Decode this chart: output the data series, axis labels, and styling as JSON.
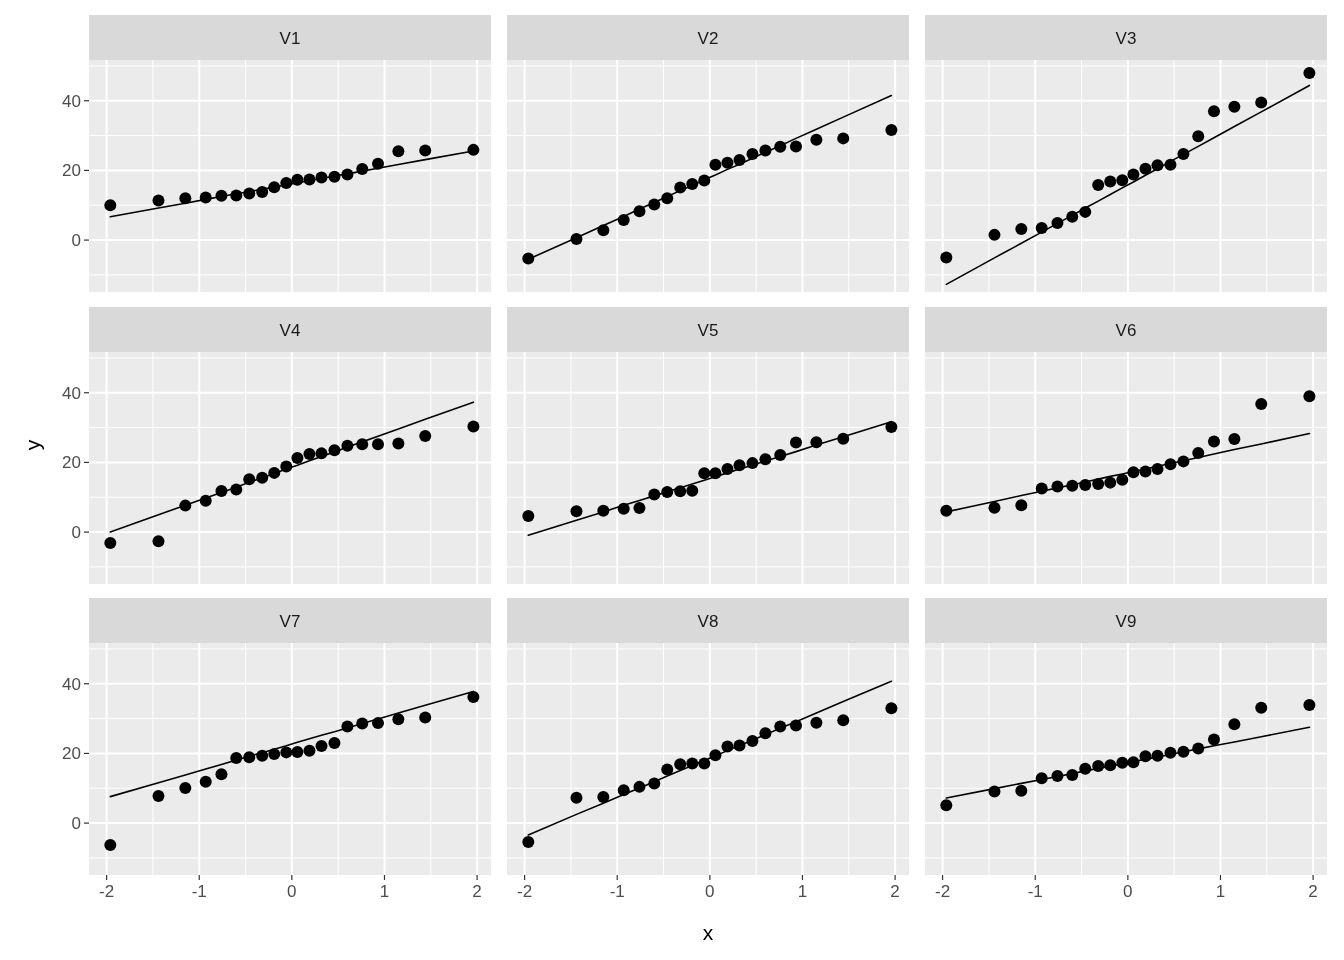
{
  "chart_data": [
    {
      "type": "scatter",
      "title": "V1",
      "x": [
        -1.96,
        -1.44,
        -1.15,
        -0.93,
        -0.76,
        -0.6,
        -0.46,
        -0.32,
        -0.19,
        -0.06,
        0.06,
        0.19,
        0.32,
        0.46,
        0.6,
        0.76,
        0.93,
        1.15,
        1.44,
        1.96
      ],
      "xlim": [
        -2.19,
        2.15
      ],
      "ylim": [
        -14.9,
        51.7
      ],
      "xticks": [
        -2,
        -1,
        0,
        1,
        2
      ],
      "yticks": [
        0,
        20,
        40
      ],
      "grid": true,
      "tick_labels": "y",
      "series": [
        {
          "type": "scatter",
          "color": "#000000",
          "values": [
            10,
            11.4,
            12,
            12.2,
            12.7,
            12.8,
            13.4,
            13.8,
            15.2,
            16.4,
            17.3,
            17.4,
            18,
            18.2,
            18.8,
            20.4,
            21.9,
            25.5,
            25.7,
            25.9
          ]
        },
        {
          "type": "line",
          "color": "#000000",
          "values": [
            6.7,
            9.2,
            10.6,
            11.7,
            12.5,
            13.3,
            13.9,
            14.6,
            15.2,
            15.9,
            16.4,
            17.1,
            17.7,
            18.4,
            19.0,
            19.8,
            20.6,
            21.7,
            23.1,
            25.6
          ]
        }
      ]
    },
    {
      "type": "scatter",
      "title": "V2",
      "x": [
        -1.96,
        -1.44,
        -1.15,
        -0.93,
        -0.76,
        -0.6,
        -0.46,
        -0.32,
        -0.19,
        -0.06,
        0.06,
        0.19,
        0.32,
        0.46,
        0.6,
        0.76,
        0.93,
        1.15,
        1.44,
        1.96
      ],
      "xlim": [
        -2.19,
        2.15
      ],
      "ylim": [
        -14.9,
        51.7
      ],
      "xticks": [
        -2,
        -1,
        0,
        1,
        2
      ],
      "yticks": [
        0,
        20,
        40
      ],
      "grid": true,
      "tick_labels": false,
      "series": [
        {
          "type": "scatter",
          "color": "#000000",
          "values": [
            -5.3,
            0.3,
            2.8,
            5.8,
            8.3,
            10.2,
            12,
            15.1,
            16.1,
            17.1,
            21.6,
            22.2,
            23,
            24.7,
            25.7,
            26.8,
            26.9,
            28.8,
            29.2,
            31.6
          ]
        },
        {
          "type": "line",
          "color": "#000000",
          "values": [
            -5.5,
            0.7,
            4.2,
            6.8,
            8.9,
            10.8,
            12.5,
            14.2,
            15.7,
            17.3,
            18.7,
            20.3,
            21.8,
            23.5,
            25.2,
            27.1,
            29.2,
            31.8,
            35.3,
            41.5
          ]
        }
      ]
    },
    {
      "type": "scatter",
      "title": "V3",
      "x": [
        -1.96,
        -1.44,
        -1.15,
        -0.93,
        -0.76,
        -0.6,
        -0.46,
        -0.32,
        -0.19,
        -0.06,
        0.06,
        0.19,
        0.32,
        0.46,
        0.6,
        0.76,
        0.93,
        1.15,
        1.44,
        1.96
      ],
      "xlim": [
        -2.19,
        2.15
      ],
      "ylim": [
        -14.9,
        51.7
      ],
      "xticks": [
        -2,
        -1,
        0,
        1,
        2
      ],
      "yticks": [
        0,
        20,
        40
      ],
      "grid": true,
      "tick_labels": false,
      "series": [
        {
          "type": "scatter",
          "color": "#000000",
          "values": [
            -5,
            1.5,
            3.2,
            3.5,
            4.9,
            6.7,
            8.1,
            15.8,
            16.8,
            17.2,
            18.8,
            20.5,
            21.5,
            21.6,
            24.7,
            29.8,
            37,
            38.3,
            39.5,
            48
          ]
        },
        {
          "type": "line",
          "color": "#000000",
          "values": [
            -12.7,
            -5.1,
            -0.9,
            2.3,
            4.8,
            7.1,
            9.2,
            11.2,
            13.1,
            15.0,
            16.7,
            18.6,
            20.5,
            22.6,
            24.6,
            26.9,
            29.4,
            32.6,
            36.8,
            44.4
          ]
        }
      ]
    },
    {
      "type": "scatter",
      "title": "V4",
      "ylabel": "y",
      "x": [
        -1.96,
        -1.44,
        -1.15,
        -0.93,
        -0.76,
        -0.6,
        -0.46,
        -0.32,
        -0.19,
        -0.06,
        0.06,
        0.19,
        0.32,
        0.46,
        0.6,
        0.76,
        0.93,
        1.15,
        1.44,
        1.96
      ],
      "xlim": [
        -2.19,
        2.15
      ],
      "ylim": [
        -14.9,
        51.7
      ],
      "xticks": [
        -2,
        -1,
        0,
        1,
        2
      ],
      "yticks": [
        0,
        20,
        40
      ],
      "grid": true,
      "tick_labels": "y",
      "series": [
        {
          "type": "scatter",
          "color": "#000000",
          "values": [
            -3.1,
            -2.6,
            7.6,
            9,
            11.8,
            12.2,
            15.2,
            15.6,
            17,
            18.8,
            21.3,
            22.4,
            22.6,
            23.5,
            24.8,
            25.2,
            25.2,
            25.4,
            27.6,
            30.3
          ]
        },
        {
          "type": "line",
          "color": "#000000",
          "values": [
            0,
            5.0,
            7.7,
            9.8,
            11.4,
            12.9,
            14.3,
            15.6,
            16.8,
            18.1,
            19.2,
            20.5,
            21.7,
            23.0,
            24.4,
            25.9,
            27.5,
            29.6,
            32.4,
            37.3
          ]
        }
      ]
    },
    {
      "type": "scatter",
      "title": "V5",
      "x": [
        -1.96,
        -1.44,
        -1.15,
        -0.93,
        -0.76,
        -0.6,
        -0.46,
        -0.32,
        -0.19,
        -0.06,
        0.06,
        0.19,
        0.32,
        0.46,
        0.6,
        0.76,
        0.93,
        1.15,
        1.44,
        1.96
      ],
      "xlim": [
        -2.19,
        2.15
      ],
      "ylim": [
        -14.9,
        51.7
      ],
      "xticks": [
        -2,
        -1,
        0,
        1,
        2
      ],
      "yticks": [
        0,
        20,
        40
      ],
      "grid": true,
      "tick_labels": false,
      "series": [
        {
          "type": "scatter",
          "color": "#000000",
          "values": [
            4.6,
            6,
            6.1,
            6.7,
            6.9,
            10.8,
            11.5,
            11.7,
            11.9,
            16.9,
            16.9,
            18.1,
            19.2,
            19.8,
            20.9,
            22.1,
            25.7,
            25.8,
            26.8,
            30.2
          ]
        },
        {
          "type": "line",
          "color": "#000000",
          "values": [
            -0.9,
            3.4,
            5.8,
            7.7,
            9.1,
            10.4,
            11.6,
            12.7,
            13.8,
            14.9,
            15.9,
            17.0,
            18.1,
            19.2,
            20.4,
            21.7,
            23.1,
            25.0,
            27.4,
            31.7
          ]
        }
      ]
    },
    {
      "type": "scatter",
      "title": "V6",
      "x": [
        -1.96,
        -1.44,
        -1.15,
        -0.93,
        -0.76,
        -0.6,
        -0.46,
        -0.32,
        -0.19,
        -0.06,
        0.06,
        0.19,
        0.32,
        0.46,
        0.6,
        0.76,
        0.93,
        1.15,
        1.44,
        1.96
      ],
      "xlim": [
        -2.19,
        2.15
      ],
      "ylim": [
        -14.9,
        51.7
      ],
      "xticks": [
        -2,
        -1,
        0,
        1,
        2
      ],
      "yticks": [
        0,
        20,
        40
      ],
      "grid": true,
      "tick_labels": false,
      "series": [
        {
          "type": "scatter",
          "color": "#000000",
          "values": [
            6.1,
            7,
            7.7,
            12.5,
            13.1,
            13.3,
            13.5,
            13.8,
            14.2,
            15,
            17.2,
            17.4,
            18.1,
            19.5,
            20.3,
            22.7,
            26,
            26.7,
            36.8,
            39
          ]
        },
        {
          "type": "line",
          "color": "#000000",
          "values": [
            5.8,
            8.8,
            10.5,
            11.7,
            12.7,
            13.6,
            14.4,
            15.2,
            16.0,
            16.7,
            17.4,
            18.1,
            18.9,
            19.7,
            20.5,
            21.4,
            22.4,
            23.7,
            25.3,
            28.3
          ]
        }
      ]
    },
    {
      "type": "scatter",
      "title": "V7",
      "x": [
        -1.96,
        -1.44,
        -1.15,
        -0.93,
        -0.76,
        -0.6,
        -0.46,
        -0.32,
        -0.19,
        -0.06,
        0.06,
        0.19,
        0.32,
        0.46,
        0.6,
        0.76,
        0.93,
        1.15,
        1.44,
        1.96
      ],
      "xlim": [
        -2.19,
        2.15
      ],
      "ylim": [
        -14.9,
        51.7
      ],
      "xticks": [
        -2,
        -1,
        0,
        1,
        2
      ],
      "yticks": [
        0,
        20,
        40
      ],
      "grid": true,
      "series": [
        {
          "type": "scatter",
          "color": "#000000",
          "values": [
            -6.3,
            7.8,
            10.1,
            11.9,
            14,
            18.7,
            18.9,
            19.3,
            19.8,
            20.3,
            20.4,
            20.8,
            22.1,
            23,
            27.7,
            28.6,
            28.7,
            29.8,
            30.3,
            36.2
          ]
        },
        {
          "type": "line",
          "color": "#000000",
          "values": [
            7.6,
            11.6,
            13.8,
            15.5,
            16.8,
            18.1,
            19.2,
            20.2,
            21.2,
            22.2,
            23.2,
            24.2,
            25.2,
            26.2,
            27.3,
            28.6,
            29.9,
            31.6,
            33.8,
            37.8
          ]
        }
      ]
    },
    {
      "type": "scatter",
      "title": "V8",
      "xlabel": "x",
      "x": [
        -1.96,
        -1.44,
        -1.15,
        -0.93,
        -0.76,
        -0.6,
        -0.46,
        -0.32,
        -0.19,
        -0.06,
        0.06,
        0.19,
        0.32,
        0.46,
        0.6,
        0.76,
        0.93,
        1.15,
        1.44,
        1.96
      ],
      "xlim": [
        -2.19,
        2.15
      ],
      "ylim": [
        -14.9,
        51.7
      ],
      "xticks": [
        -2,
        -1,
        0,
        1,
        2
      ],
      "yticks": [
        0,
        20,
        40
      ],
      "grid": true,
      "tick_labels": "x",
      "series": [
        {
          "type": "scatter",
          "color": "#000000",
          "values": [
            -5.4,
            7.3,
            7.5,
            9.4,
            10.4,
            11.4,
            15.4,
            16.9,
            17.1,
            17.1,
            19.5,
            22,
            22.3,
            23.6,
            25.8,
            27.7,
            28,
            28.8,
            29.5,
            33
          ]
        },
        {
          "type": "line",
          "color": "#000000",
          "values": [
            -3.4,
            2.5,
            5.7,
            8.2,
            10.1,
            11.9,
            13.5,
            15.1,
            16.5,
            18.0,
            19.3,
            20.8,
            22.3,
            23.8,
            25.4,
            27.2,
            29.1,
            31.6,
            34.9,
            40.7
          ]
        }
      ]
    },
    {
      "type": "scatter",
      "title": "V9",
      "x": [
        -1.96,
        -1.44,
        -1.15,
        -0.93,
        -0.76,
        -0.6,
        -0.46,
        -0.32,
        -0.19,
        -0.06,
        0.06,
        0.19,
        0.32,
        0.46,
        0.6,
        0.76,
        0.93,
        1.15,
        1.44,
        1.96
      ],
      "xlim": [
        -2.19,
        2.15
      ],
      "ylim": [
        -14.9,
        51.7
      ],
      "xticks": [
        -2,
        -1,
        0,
        1,
        2
      ],
      "yticks": [
        0,
        20,
        40
      ],
      "grid": true,
      "tick_labels": "x",
      "series": [
        {
          "type": "scatter",
          "color": "#000000",
          "values": [
            5.1,
            9.1,
            9.3,
            12.9,
            13.5,
            13.8,
            15.6,
            16.4,
            16.6,
            17.3,
            17.5,
            19.2,
            19.3,
            20.2,
            20.5,
            21.4,
            24,
            28.4,
            33.1,
            33.9
          ]
        },
        {
          "type": "line",
          "color": "#000000",
          "values": [
            7.2,
            9.9,
            11.4,
            12.5,
            13.4,
            14.2,
            15.0,
            15.7,
            16.4,
            17.0,
            17.7,
            18.3,
            19.0,
            19.7,
            20.5,
            21.3,
            22.2,
            23.3,
            24.8,
            27.5
          ]
        }
      ]
    }
  ]
}
